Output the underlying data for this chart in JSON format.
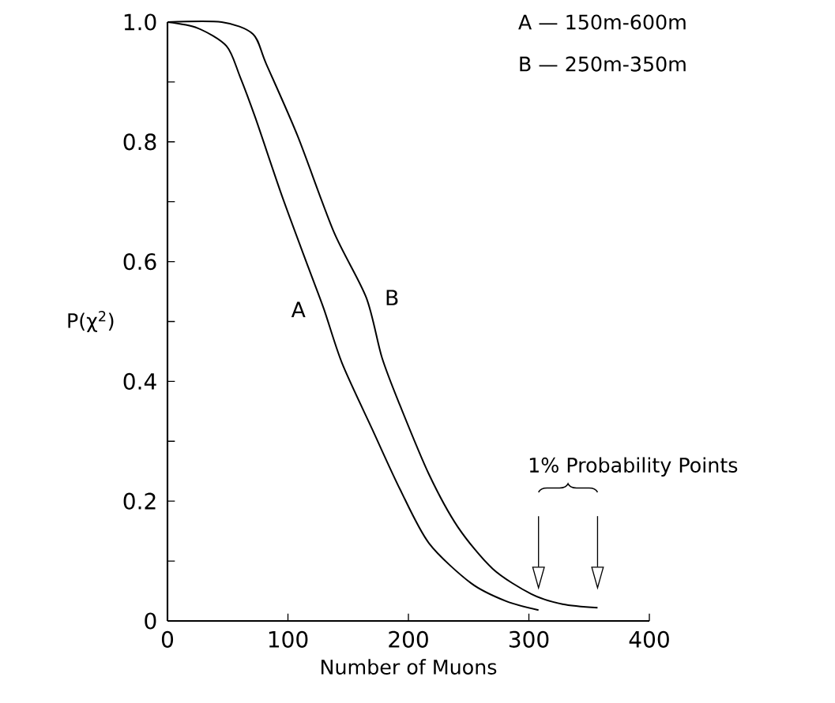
{
  "chart_data": {
    "type": "line",
    "xlabel": "Number of Muons",
    "ylabel": "P(χ$^{2}$)",
    "series": [
      {
        "name": "A",
        "color": "#000000",
        "x": [
          0,
          25,
          49,
          60,
          73,
          95,
          117,
          130,
          145,
          170,
          193,
          217,
          252,
          281,
          308
        ],
        "values": [
          1.0,
          0.99,
          0.96,
          0.91,
          0.84,
          0.71,
          0.59,
          0.52,
          0.43,
          0.32,
          0.22,
          0.13,
          0.063,
          0.033,
          0.018
        ]
      },
      {
        "name": "B",
        "color": "#000000",
        "x": [
          0,
          45,
          71,
          82,
          108,
          138,
          165,
          178,
          193,
          217,
          241,
          270,
          302,
          328,
          357
        ],
        "values": [
          1.0,
          1.0,
          0.98,
          0.93,
          0.81,
          0.65,
          0.54,
          0.44,
          0.36,
          0.245,
          0.157,
          0.087,
          0.045,
          0.028,
          0.022
        ]
      }
    ],
    "xlim": [
      0,
      400
    ],
    "ylim": [
      0,
      1.0
    ],
    "xticks": [
      0,
      100,
      200,
      300,
      400
    ],
    "yticks": [
      0,
      {
        "value": 0.1,
        "label": null
      },
      0.2,
      {
        "value": 0.3,
        "label": null
      },
      0.4,
      {
        "value": 0.5,
        "label": null
      },
      0.6,
      {
        "value": 0.7,
        "label": null
      },
      0.8,
      {
        "value": 0.9,
        "label": null
      },
      {
        "value": 1.0,
        "label": "1.0"
      }
    ],
    "annotations": [
      "A — 150m-600m",
      "B — 250m-350m",
      "1% Probability Points"
    ],
    "grid": false,
    "marker": "none",
    "line_style": "solid"
  }
}
